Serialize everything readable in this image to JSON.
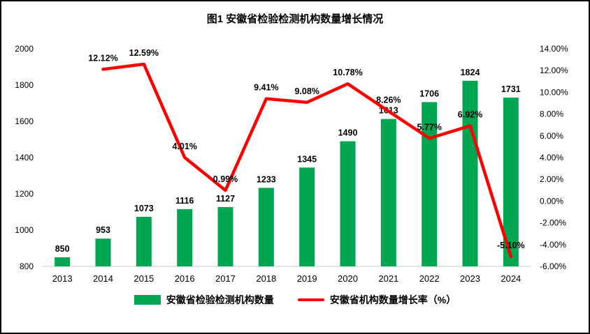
{
  "figure": {
    "title": "图1 安徽省检验检测机构数量增长情况"
  },
  "chart_data": {
    "type": "combo: bar + line",
    "title": "图1 安徽省检验检测机构数量增长情况",
    "categories": [
      "2013",
      "2014",
      "2015",
      "2016",
      "2017",
      "2018",
      "2019",
      "2020",
      "2021",
      "2022",
      "2023",
      "2024"
    ],
    "series": [
      {
        "name": "安徽省检验检测机构数量",
        "type": "bar",
        "axis": "left",
        "color": "#00A651",
        "values": [
          850,
          953,
          1073,
          1116,
          1127,
          1233,
          1345,
          1490,
          1613,
          1706,
          1824,
          1731
        ],
        "labels": [
          "850",
          "953",
          "1073",
          "1116",
          "1127",
          "1233",
          "1345",
          "1490",
          "1613",
          "1706",
          "1824",
          "1731"
        ]
      },
      {
        "name": "安徽省机构数量增长率（%）",
        "type": "line",
        "axis": "right",
        "color": "#FF0000",
        "values": [
          null,
          12.12,
          12.59,
          4.01,
          0.99,
          9.41,
          9.08,
          10.78,
          8.26,
          5.77,
          6.92,
          -5.1
        ],
        "labels": [
          null,
          "12.12%",
          "12.59%",
          "4.01%",
          "0.99%",
          "9.41%",
          "9.08%",
          "10.78%",
          "8.26%",
          "5.77%",
          "6.92%",
          "-5.10%"
        ]
      }
    ],
    "left_axis": {
      "min": 800,
      "max": 2000,
      "ticks": [
        "800",
        "1000",
        "1200",
        "1400",
        "1600",
        "1800",
        "2000"
      ]
    },
    "right_axis": {
      "min": -6,
      "max": 14,
      "ticks": [
        "-6.00%",
        "-4.00%",
        "-2.00%",
        "0.00%",
        "2.00%",
        "4.00%",
        "6.00%",
        "8.00%",
        "10.00%",
        "12.00%",
        "14.00%"
      ]
    },
    "grid": false,
    "legend_position": "bottom"
  }
}
